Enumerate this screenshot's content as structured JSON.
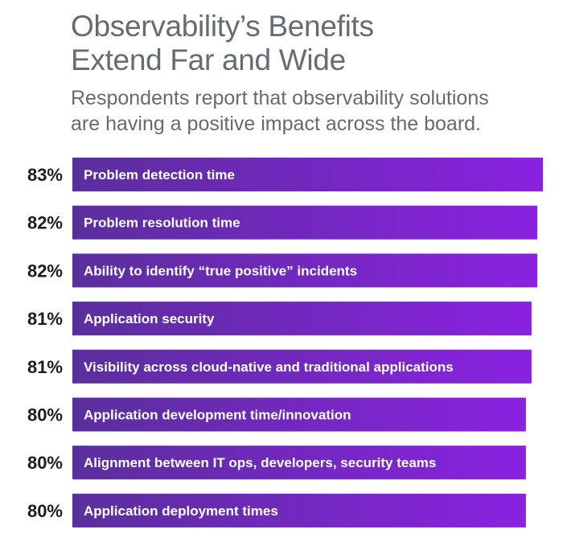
{
  "header": {
    "title_line1": "Observability’s Benefits",
    "title_line2": "Extend Far and Wide",
    "subtitle_line1": "Respondents report that observability solutions",
    "subtitle_line2": "are having a positive impact across the board."
  },
  "colors": {
    "bar_start": "#5a2f9c",
    "bar_end": "#8a22e0",
    "title_text": "#646b72",
    "value_text": "#1d1d1f"
  },
  "chart_data": {
    "type": "bar",
    "orientation": "horizontal",
    "title": "Observability’s Benefits Extend Far and Wide",
    "subtitle": "Respondents report that observability solutions are having a positive impact across the board.",
    "categories": [
      "Problem detection time",
      "Problem resolution time",
      "Ability to identify “true positive” incidents",
      "Application security",
      "Visibility across cloud-native and traditional applications",
      "Application development time/innovation",
      "Alignment between IT ops, developers, security teams",
      "Application deployment times"
    ],
    "values": [
      83,
      82,
      82,
      81,
      81,
      80,
      80,
      80
    ],
    "value_labels": [
      "83%",
      "82%",
      "82%",
      "81%",
      "81%",
      "80%",
      "80%",
      "80%"
    ],
    "unit": "%",
    "grid": false,
    "legend": "none"
  }
}
